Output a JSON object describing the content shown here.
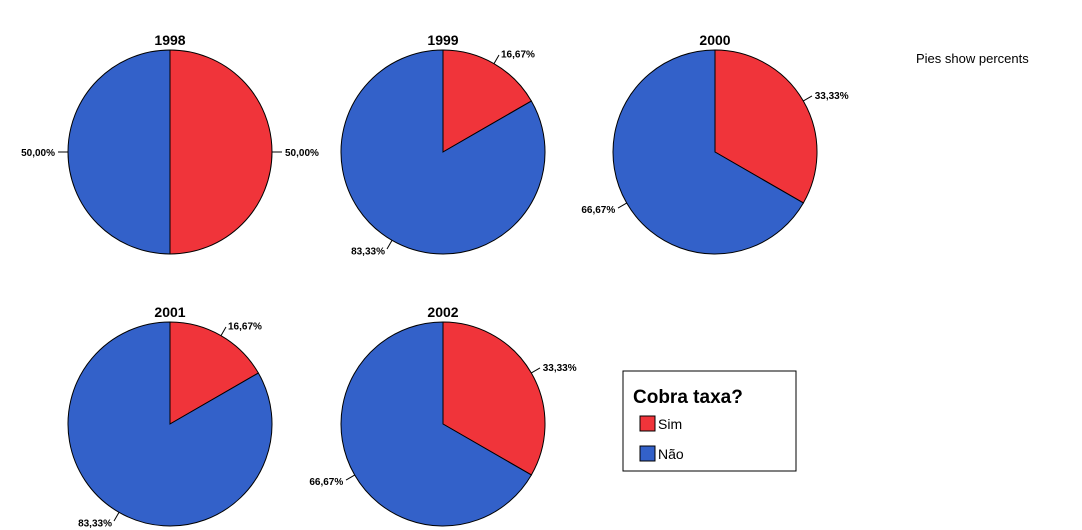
{
  "chart_data": {
    "type": "pie",
    "note": "Pies show percents",
    "colors": {
      "Sim": "#f0343a",
      "Não": "#3361c9",
      "outline": "#000000"
    },
    "legend": {
      "title": "Cobra taxa?",
      "placement": "bottom-right",
      "entries": [
        "Sim",
        "Não"
      ]
    },
    "pies": [
      {
        "title": "1998",
        "slices": [
          {
            "label": "Sim",
            "value": 50.0,
            "text": "50,00%"
          },
          {
            "label": "Não",
            "value": 50.0,
            "text": "50,00%"
          }
        ]
      },
      {
        "title": "1999",
        "slices": [
          {
            "label": "Sim",
            "value": 16.67,
            "text": "16,67%"
          },
          {
            "label": "Não",
            "value": 83.33,
            "text": "83,33%"
          }
        ]
      },
      {
        "title": "2000",
        "slices": [
          {
            "label": "Sim",
            "value": 33.33,
            "text": "33,33%"
          },
          {
            "label": "Não",
            "value": 66.67,
            "text": "66,67%"
          }
        ]
      },
      {
        "title": "2001",
        "slices": [
          {
            "label": "Sim",
            "value": 16.67,
            "text": "16,67%"
          },
          {
            "label": "Não",
            "value": 83.33,
            "text": "83,33%"
          }
        ]
      },
      {
        "title": "2002",
        "slices": [
          {
            "label": "Sim",
            "value": 33.33,
            "text": "33,33%"
          },
          {
            "label": "Não",
            "value": 66.67,
            "text": "66,67%"
          }
        ]
      }
    ]
  }
}
